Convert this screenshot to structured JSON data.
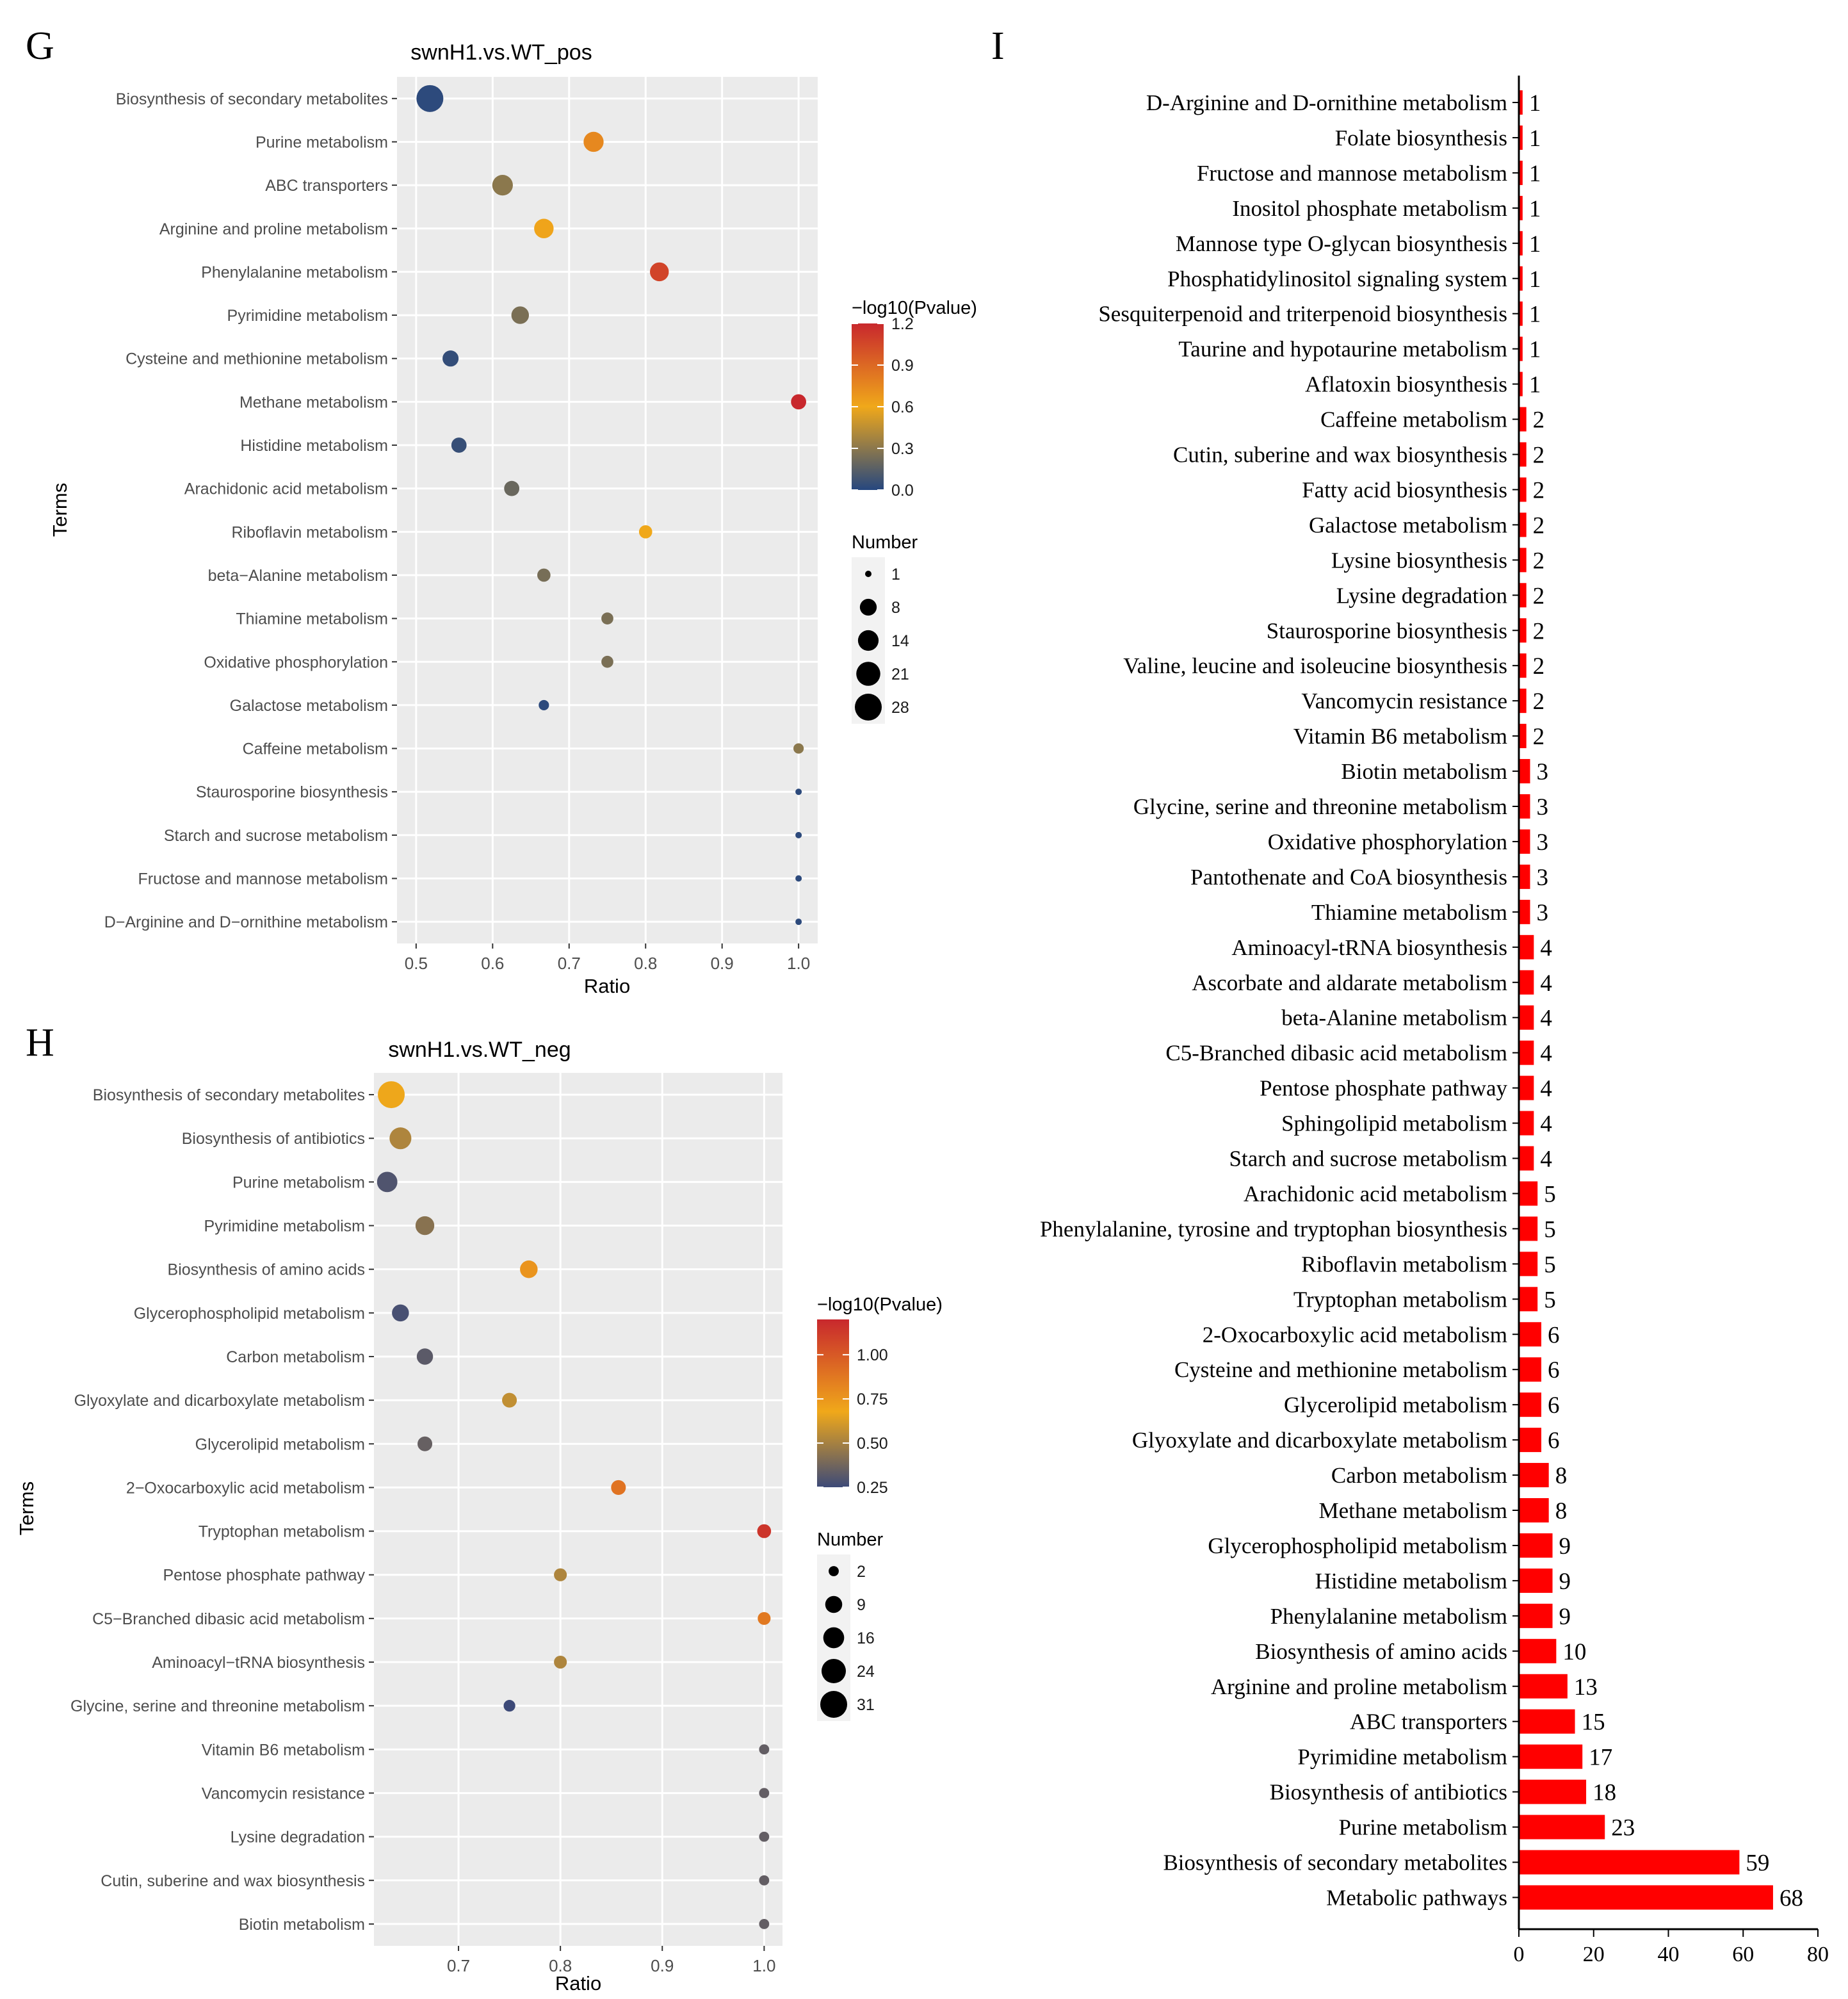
{
  "panels": {
    "g": {
      "letter": "G",
      "chart_data": {
        "type": "scatter",
        "title": "swnH1.vs.WT_pos",
        "xlabel": "Ratio",
        "ylabel": "Terms",
        "xlim": [
          0.475,
          1.025
        ],
        "x_ticks": [
          "0.5",
          "0.6",
          "0.7",
          "0.8",
          "0.9",
          "1.0"
        ],
        "grid": true,
        "color_legend": {
          "title": "−log10(Pvalue)",
          "ticks": [
            "1.2",
            "0.9",
            "0.6",
            "0.3",
            "0.0"
          ],
          "range": [
            0,
            1.2
          ],
          "colors": [
            "#26477f",
            "#f0a81a",
            "#c8282d"
          ]
        },
        "size_legend": {
          "title": "Number",
          "values": [
            "1",
            "8",
            "14",
            "21",
            "28"
          ]
        },
        "points": [
          {
            "term": "Biosynthesis of secondary metabolites",
            "ratio": 0.518,
            "number": 28,
            "neglog10p": 0.02
          },
          {
            "term": "Purine metabolism",
            "ratio": 0.732,
            "number": 13,
            "neglog10p": 0.75
          },
          {
            "term": "ABC transporters",
            "ratio": 0.613,
            "number": 14,
            "neglog10p": 0.3
          },
          {
            "term": "Arginine and proline metabolism",
            "ratio": 0.667,
            "number": 12,
            "neglog10p": 0.62
          },
          {
            "term": "Phenylalanine metabolism",
            "ratio": 0.818,
            "number": 11,
            "neglog10p": 1.07
          },
          {
            "term": "Pyrimidine metabolism",
            "ratio": 0.636,
            "number": 9,
            "neglog10p": 0.25
          },
          {
            "term": "Cysteine and methionine metabolism",
            "ratio": 0.545,
            "number": 7,
            "neglog10p": 0.04
          },
          {
            "term": "Methane metabolism",
            "ratio": 1.0,
            "number": 6,
            "neglog10p": 1.2
          },
          {
            "term": "Histidine metabolism",
            "ratio": 0.556,
            "number": 6,
            "neglog10p": 0.05
          },
          {
            "term": "Arachidonic acid metabolism",
            "ratio": 0.625,
            "number": 6,
            "neglog10p": 0.2
          },
          {
            "term": "Riboflavin metabolism",
            "ratio": 0.8,
            "number": 4,
            "neglog10p": 0.6
          },
          {
            "term": "beta−Alanine metabolism",
            "ratio": 0.667,
            "number": 4,
            "neglog10p": 0.24
          },
          {
            "term": "Thiamine metabolism",
            "ratio": 0.75,
            "number": 3,
            "neglog10p": 0.25
          },
          {
            "term": "Oxidative phosphorylation",
            "ratio": 0.75,
            "number": 3,
            "neglog10p": 0.25
          },
          {
            "term": "Galactose metabolism",
            "ratio": 0.667,
            "number": 2,
            "neglog10p": 0.02
          },
          {
            "term": "Caffeine metabolism",
            "ratio": 1.0,
            "number": 2,
            "neglog10p": 0.3
          },
          {
            "term": "Staurosporine biosynthesis",
            "ratio": 1.0,
            "number": 1,
            "neglog10p": 0.02
          },
          {
            "term": "Starch and sucrose metabolism",
            "ratio": 1.0,
            "number": 1,
            "neglog10p": 0.02
          },
          {
            "term": "Fructose and mannose metabolism",
            "ratio": 1.0,
            "number": 1,
            "neglog10p": 0.02
          },
          {
            "term": "D−Arginine and D−ornithine metabolism",
            "ratio": 1.0,
            "number": 1,
            "neglog10p": 0.02
          }
        ]
      }
    },
    "h": {
      "letter": "H",
      "chart_data": {
        "type": "scatter",
        "title": "swnH1.vs.WT_neg",
        "xlabel": "Ratio",
        "ylabel": "Terms",
        "xlim": [
          0.617,
          1.018
        ],
        "x_ticks": [
          "0.7",
          "0.8",
          "0.9",
          "1.0"
        ],
        "grid": true,
        "color_legend": {
          "title": "−log10(Pvalue)",
          "ticks": [
            "1.00",
            "0.75",
            "0.50",
            "0.25"
          ],
          "range": [
            0.25,
            1.2
          ],
          "colors": [
            "#3d4a78",
            "#f0a81a",
            "#c8282d"
          ]
        },
        "size_legend": {
          "title": "Number",
          "values": [
            "2",
            "9",
            "16",
            "24",
            "31"
          ]
        },
        "points": [
          {
            "term": "Biosynthesis of secondary metabolites",
            "ratio": 0.634,
            "number": 31,
            "neglog10p": 0.72
          },
          {
            "term": "Biosynthesis of antibiotics",
            "ratio": 0.643,
            "number": 18,
            "neglog10p": 0.55
          },
          {
            "term": "Purine metabolism",
            "ratio": 0.63,
            "number": 15,
            "neglog10p": 0.3
          },
          {
            "term": "Pyrimidine metabolism",
            "ratio": 0.667,
            "number": 12,
            "neglog10p": 0.45
          },
          {
            "term": "Biosynthesis of amino acids",
            "ratio": 0.769,
            "number": 10,
            "neglog10p": 0.8
          },
          {
            "term": "Glycerophospholipid metabolism",
            "ratio": 0.643,
            "number": 9,
            "neglog10p": 0.28
          },
          {
            "term": "Carbon metabolism",
            "ratio": 0.667,
            "number": 8,
            "neglog10p": 0.33
          },
          {
            "term": "Glyoxylate and dicarboxylate metabolism",
            "ratio": 0.75,
            "number": 6,
            "neglog10p": 0.6
          },
          {
            "term": "Glycerolipid metabolism",
            "ratio": 0.667,
            "number": 6,
            "neglog10p": 0.36
          },
          {
            "term": "2−Oxocarboxylic acid metabolism",
            "ratio": 0.857,
            "number": 6,
            "neglog10p": 0.92
          },
          {
            "term": "Tryptophan metabolism",
            "ratio": 1.0,
            "number": 5,
            "neglog10p": 1.15
          },
          {
            "term": "Pentose phosphate pathway",
            "ratio": 0.8,
            "number": 4,
            "neglog10p": 0.55
          },
          {
            "term": "C5−Branched dibasic acid metabolism",
            "ratio": 1.0,
            "number": 4,
            "neglog10p": 0.9
          },
          {
            "term": "Aminoacyl−tRNA biosynthesis",
            "ratio": 0.8,
            "number": 4,
            "neglog10p": 0.55
          },
          {
            "term": "Glycine, serine and threonine metabolism",
            "ratio": 0.75,
            "number": 3,
            "neglog10p": 0.25
          },
          {
            "term": "Vitamin B6 metabolism",
            "ratio": 1.0,
            "number": 2,
            "neglog10p": 0.35
          },
          {
            "term": "Vancomycin resistance",
            "ratio": 1.0,
            "number": 2,
            "neglog10p": 0.35
          },
          {
            "term": "Lysine degradation",
            "ratio": 1.0,
            "number": 2,
            "neglog10p": 0.35
          },
          {
            "term": "Cutin, suberine and wax biosynthesis",
            "ratio": 1.0,
            "number": 2,
            "neglog10p": 0.35
          },
          {
            "term": "Biotin metabolism",
            "ratio": 1.0,
            "number": 2,
            "neglog10p": 0.35
          }
        ]
      }
    },
    "i": {
      "letter": "I",
      "chart_data": {
        "type": "bar",
        "orientation": "horizontal",
        "xlim": [
          0,
          80
        ],
        "x_ticks": [
          "0",
          "20",
          "40",
          "60",
          "80"
        ],
        "bar_color": "#ff0000",
        "categories": [
          "D-Arginine and D-ornithine metabolism",
          "Folate biosynthesis",
          "Fructose and mannose metabolism",
          "Inositol phosphate metabolism",
          "Mannose type O-glycan biosynthesis",
          "Phosphatidylinositol signaling system",
          "Sesquiterpenoid and triterpenoid biosynthesis",
          "Taurine and hypotaurine metabolism",
          "Aflatoxin biosynthesis",
          "Caffeine metabolism",
          "Cutin, suberine and wax biosynthesis",
          "Fatty acid biosynthesis",
          "Galactose metabolism",
          "Lysine biosynthesis",
          "Lysine degradation",
          "Staurosporine biosynthesis",
          "Valine, leucine and isoleucine biosynthesis",
          "Vancomycin resistance",
          "Vitamin B6 metabolism",
          "Biotin metabolism",
          "Glycine, serine and threonine metabolism",
          "Oxidative phosphorylation",
          "Pantothenate and CoA biosynthesis",
          "Thiamine metabolism",
          "Aminoacyl-tRNA biosynthesis",
          "Ascorbate and aldarate metabolism",
          "beta-Alanine metabolism",
          "C5-Branched dibasic acid metabolism",
          "Pentose phosphate pathway",
          "Sphingolipid metabolism",
          "Starch and sucrose metabolism",
          "Arachidonic acid metabolism",
          "Phenylalanine, tyrosine and tryptophan biosynthesis",
          "Riboflavin metabolism",
          "Tryptophan metabolism",
          "2-Oxocarboxylic acid metabolism",
          "Cysteine and methionine metabolism",
          "Glycerolipid metabolism",
          "Glyoxylate and dicarboxylate metabolism",
          "Carbon metabolism",
          "Methane metabolism",
          "Glycerophospholipid metabolism",
          "Histidine metabolism",
          "Phenylalanine metabolism",
          "Biosynthesis of amino acids",
          "Arginine and proline metabolism",
          "ABC transporters",
          "Pyrimidine metabolism",
          "Biosynthesis of antibiotics",
          "Purine metabolism",
          "Biosynthesis of secondary metabolites",
          "Metabolic pathways"
        ],
        "values": [
          1,
          1,
          1,
          1,
          1,
          1,
          1,
          1,
          1,
          2,
          2,
          2,
          2,
          2,
          2,
          2,
          2,
          2,
          2,
          3,
          3,
          3,
          3,
          3,
          4,
          4,
          4,
          4,
          4,
          4,
          4,
          5,
          5,
          5,
          5,
          6,
          6,
          6,
          6,
          8,
          8,
          9,
          9,
          9,
          10,
          13,
          15,
          17,
          18,
          23,
          59,
          68
        ]
      }
    }
  }
}
